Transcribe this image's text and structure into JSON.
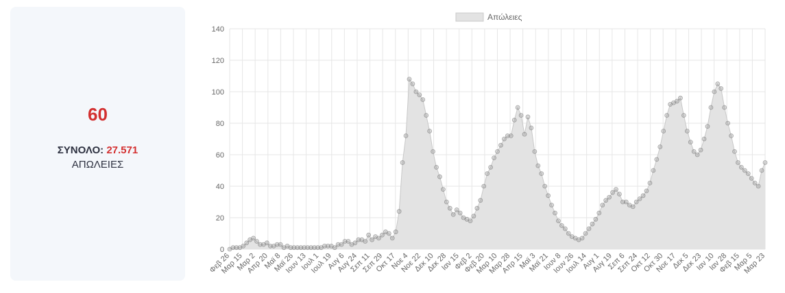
{
  "summary": {
    "value": "60",
    "total_label": "ΣΥΝΟΛΟ:",
    "total_value": "27.571",
    "caption": "ΑΠΩΛΕΙΕΣ"
  },
  "colors": {
    "accent": "#d32f2f",
    "series_fill": "#e3e3e3",
    "series_line": "#c8c8c8",
    "point": "#9a9a9a",
    "grid": "#e6e6e6",
    "text": "#666666"
  },
  "chart_data": {
    "type": "area",
    "legend": {
      "entries": [
        "Απώλειες"
      ],
      "position": "top"
    },
    "ylim": [
      0,
      140
    ],
    "yticks": [
      0,
      20,
      40,
      60,
      80,
      100,
      120,
      140
    ],
    "grid": true,
    "x_tick_labels": [
      "Φεβ 26",
      "Μαρ 15",
      "Μαρ 2",
      "Απρ 20",
      "Μαϊ 8",
      "Μαϊ 26",
      "Ιουν 13",
      "Ιουλ 1",
      "Ιουλ 19",
      "Αυγ 6",
      "Αυγ 24",
      "Σεπ 11",
      "Σεπ 29",
      "Οκτ 17",
      "Νοε 4",
      "Νοε 22",
      "Δεκ 10",
      "Δεκ 28",
      "Ιαν 15",
      "Φεβ 2",
      "Φεβ 20",
      "Μαρ 10",
      "Μαρ 28",
      "Απρ 15",
      "Μαϊ 3",
      "Μαϊ 21",
      "Ιουν 8",
      "Ιουν 26",
      "Ιουλ 14",
      "Αυγ 1",
      "Αυγ 19",
      "Σεπ 6",
      "Σεπ 24",
      "Οκτ 12",
      "Οκτ 30",
      "Νοε 17",
      "Δεκ 5",
      "Δεκ 23",
      "Ιαν 10",
      "Ιαν 28",
      "Φεβ 15",
      "Μαρ 5",
      "Μαρ 23"
    ],
    "series": [
      {
        "name": "Απώλειες",
        "values": [
          0,
          1,
          1,
          1,
          2,
          4,
          6,
          7,
          5,
          3,
          3,
          4,
          2,
          2,
          3,
          3,
          1,
          2,
          1,
          1,
          1,
          1,
          1,
          1,
          1,
          1,
          1,
          1,
          2,
          2,
          2,
          1,
          3,
          3,
          5,
          5,
          3,
          4,
          6,
          6,
          5,
          9,
          6,
          8,
          7,
          9,
          11,
          10,
          7,
          11,
          24,
          55,
          72,
          108,
          105,
          100,
          98,
          95,
          85,
          75,
          62,
          52,
          46,
          38,
          30,
          26,
          22,
          25,
          23,
          20,
          19,
          18,
          21,
          26,
          31,
          40,
          48,
          52,
          58,
          62,
          66,
          70,
          72,
          72,
          82,
          90,
          85,
          73,
          84,
          77,
          62,
          53,
          48,
          40,
          34,
          28,
          23,
          18,
          15,
          13,
          10,
          8,
          7,
          6,
          7,
          10,
          13,
          16,
          19,
          23,
          28,
          31,
          33,
          36,
          38,
          35,
          30,
          30,
          28,
          27,
          30,
          32,
          34,
          37,
          42,
          50,
          57,
          65,
          75,
          85,
          92,
          93,
          94,
          96,
          85,
          75,
          68,
          62,
          60,
          63,
          70,
          78,
          90,
          100,
          105,
          102,
          90,
          80,
          72,
          62,
          55,
          52,
          50,
          48,
          45,
          42,
          40,
          50,
          55
        ]
      }
    ]
  }
}
